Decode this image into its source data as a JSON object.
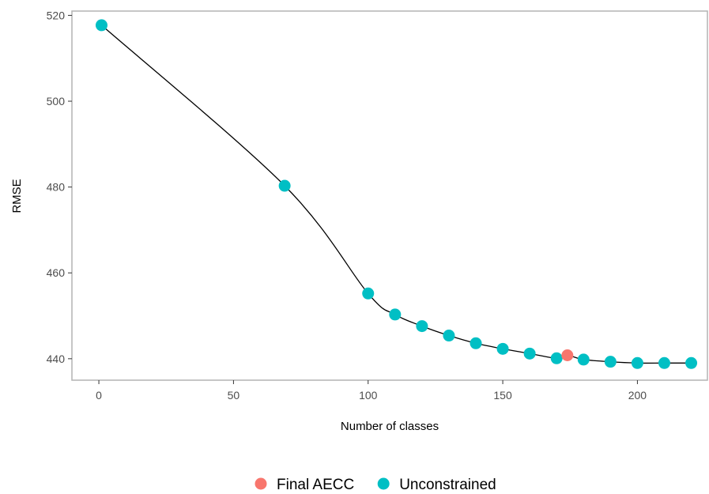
{
  "chart_data": {
    "type": "scatter",
    "xlabel": "Number of classes",
    "ylabel": "RMSE",
    "xlim": [
      -10,
      226
    ],
    "ylim": [
      435,
      521
    ],
    "x_ticks": [
      0,
      50,
      100,
      150,
      200
    ],
    "y_ticks": [
      440,
      460,
      480,
      500,
      520
    ],
    "grid": false,
    "legend_position": "bottom",
    "line": {
      "color": "#000000",
      "points": [
        [
          1,
          517.7
        ],
        [
          69,
          480.3
        ],
        [
          100,
          455.2
        ],
        [
          110,
          450.3
        ],
        [
          120,
          447.6
        ],
        [
          130,
          445.4
        ],
        [
          140,
          443.6
        ],
        [
          150,
          442.3
        ],
        [
          160,
          441.2
        ],
        [
          170,
          440.1
        ],
        [
          174,
          440.8
        ],
        [
          180,
          439.8
        ],
        [
          190,
          439.3
        ],
        [
          200,
          439.0
        ],
        [
          210,
          439.0
        ],
        [
          220,
          439.0
        ]
      ]
    },
    "series": [
      {
        "name": "Unconstrained",
        "color": "#00BFC4",
        "points": [
          [
            1,
            517.7
          ],
          [
            69,
            480.3
          ],
          [
            100,
            455.2
          ],
          [
            110,
            450.3
          ],
          [
            120,
            447.6
          ],
          [
            130,
            445.4
          ],
          [
            140,
            443.6
          ],
          [
            150,
            442.3
          ],
          [
            160,
            441.2
          ],
          [
            170,
            440.1
          ],
          [
            180,
            439.8
          ],
          [
            190,
            439.3
          ],
          [
            200,
            439.0
          ],
          [
            210,
            439.0
          ],
          [
            220,
            439.0
          ]
        ]
      },
      {
        "name": "Final AECC",
        "color": "#F8766D",
        "points": [
          [
            174,
            440.8
          ]
        ]
      }
    ],
    "legend": [
      {
        "name": "Final AECC",
        "color": "#F8766D"
      },
      {
        "name": "Unconstrained",
        "color": "#00BFC4"
      }
    ]
  }
}
